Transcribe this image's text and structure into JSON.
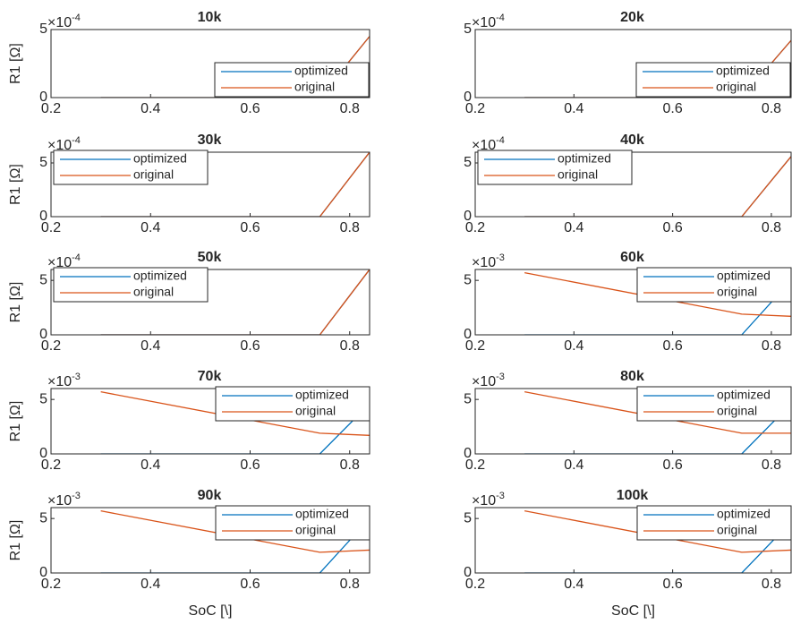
{
  "chart_data": [
    {
      "type": "line",
      "title": "10k",
      "ylabel": "R1 [Ω]",
      "x": [
        0.3,
        0.74,
        0.84
      ],
      "xlim": [
        0.2,
        0.84
      ],
      "xticks": [
        0.2,
        0.4,
        0.6,
        0.8
      ],
      "ylim": [
        0,
        0.0005
      ],
      "yticks": [
        0,
        {
          "value": 0.0005,
          "label": "5"
        }
      ],
      "y_multiplier": {
        "base": "×10",
        "exponent": "-4"
      },
      "legend": "southeast",
      "series": [
        {
          "name": "optimized",
          "color": "#0072BD",
          "values": [
            0,
            0,
            0.00045
          ]
        },
        {
          "name": "original",
          "color": "#D95319",
          "values": [
            0,
            0,
            0.00045
          ]
        }
      ]
    },
    {
      "type": "line",
      "title": "20k",
      "x": [
        0.3,
        0.74,
        0.84
      ],
      "xlim": [
        0.2,
        0.84
      ],
      "xticks": [
        0.2,
        0.4,
        0.6,
        0.8
      ],
      "ylim": [
        0,
        0.0005
      ],
      "yticks": [
        0,
        {
          "value": 0.0005,
          "label": "5"
        }
      ],
      "y_multiplier": {
        "base": "×10",
        "exponent": "-4"
      },
      "legend": "southeast",
      "series": [
        {
          "name": "optimized",
          "color": "#0072BD",
          "values": [
            0,
            0,
            0.00042
          ]
        },
        {
          "name": "original",
          "color": "#D95319",
          "values": [
            0,
            0,
            0.00042
          ]
        }
      ]
    },
    {
      "type": "line",
      "title": "30k",
      "ylabel": "R1 [Ω]",
      "x": [
        0.3,
        0.74,
        0.84
      ],
      "xlim": [
        0.2,
        0.84
      ],
      "xticks": [
        0.2,
        0.4,
        0.6,
        0.8
      ],
      "ylim": [
        0,
        0.0006
      ],
      "yticks": [
        0,
        {
          "value": 0.0005,
          "label": "5"
        }
      ],
      "y_multiplier": {
        "base": "×10",
        "exponent": "-4"
      },
      "legend": "northwest",
      "series": [
        {
          "name": "optimized",
          "color": "#0072BD",
          "values": [
            0,
            0,
            0.0006
          ]
        },
        {
          "name": "original",
          "color": "#D95319",
          "values": [
            0,
            0,
            0.0006
          ]
        }
      ]
    },
    {
      "type": "line",
      "title": "40k",
      "x": [
        0.3,
        0.74,
        0.84
      ],
      "xlim": [
        0.2,
        0.84
      ],
      "xticks": [
        0.2,
        0.4,
        0.6,
        0.8
      ],
      "ylim": [
        0,
        0.0006
      ],
      "yticks": [
        0,
        {
          "value": 0.0005,
          "label": "5"
        }
      ],
      "y_multiplier": {
        "base": "×10",
        "exponent": "-4"
      },
      "legend": "northwest",
      "series": [
        {
          "name": "optimized",
          "color": "#0072BD",
          "values": [
            0,
            0,
            0.00056
          ]
        },
        {
          "name": "original",
          "color": "#D95319",
          "values": [
            0,
            0,
            0.00056
          ]
        }
      ]
    },
    {
      "type": "line",
      "title": "50k",
      "ylabel": "R1 [Ω]",
      "x": [
        0.3,
        0.74,
        0.84
      ],
      "xlim": [
        0.2,
        0.84
      ],
      "xticks": [
        0.2,
        0.4,
        0.6,
        0.8
      ],
      "ylim": [
        0,
        0.0006
      ],
      "yticks": [
        0,
        {
          "value": 0.0005,
          "label": "5"
        }
      ],
      "y_multiplier": {
        "base": "×10",
        "exponent": "-4"
      },
      "legend": "northwest",
      "series": [
        {
          "name": "optimized",
          "color": "#0072BD",
          "values": [
            0,
            0,
            0.0006
          ]
        },
        {
          "name": "original",
          "color": "#D95319",
          "values": [
            0,
            0,
            0.0006
          ]
        }
      ]
    },
    {
      "type": "line",
      "title": "60k",
      "x": [
        0.3,
        0.74,
        0.84
      ],
      "xlim": [
        0.2,
        0.84
      ],
      "xticks": [
        0.2,
        0.4,
        0.6,
        0.8
      ],
      "ylim": [
        0,
        0.006
      ],
      "yticks": [
        0,
        {
          "value": 0.005,
          "label": "5"
        }
      ],
      "y_multiplier": {
        "base": "×10",
        "exponent": "-3"
      },
      "legend": "northeast",
      "series": [
        {
          "name": "optimized",
          "color": "#0072BD",
          "values": [
            0,
            0,
            0.005
          ]
        },
        {
          "name": "original",
          "color": "#D95319",
          "values": [
            0.0057,
            0.0019,
            0.0017
          ]
        }
      ]
    },
    {
      "type": "line",
      "title": "70k",
      "ylabel": "R1 [Ω]",
      "x": [
        0.3,
        0.74,
        0.84
      ],
      "xlim": [
        0.2,
        0.84
      ],
      "xticks": [
        0.2,
        0.4,
        0.6,
        0.8
      ],
      "ylim": [
        0,
        0.006
      ],
      "yticks": [
        0,
        {
          "value": 0.005,
          "label": "5"
        }
      ],
      "y_multiplier": {
        "base": "×10",
        "exponent": "-3"
      },
      "legend": "northeast",
      "series": [
        {
          "name": "optimized",
          "color": "#0072BD",
          "values": [
            0,
            0,
            0.0046
          ]
        },
        {
          "name": "original",
          "color": "#D95319",
          "values": [
            0.0057,
            0.0019,
            0.0017
          ]
        }
      ]
    },
    {
      "type": "line",
      "title": "80k",
      "x": [
        0.3,
        0.74,
        0.84
      ],
      "xlim": [
        0.2,
        0.84
      ],
      "xticks": [
        0.2,
        0.4,
        0.6,
        0.8
      ],
      "ylim": [
        0,
        0.006
      ],
      "yticks": [
        0,
        {
          "value": 0.005,
          "label": "5"
        }
      ],
      "y_multiplier": {
        "base": "×10",
        "exponent": "-3"
      },
      "legend": "northeast",
      "series": [
        {
          "name": "optimized",
          "color": "#0072BD",
          "values": [
            0,
            0,
            0.0046
          ]
        },
        {
          "name": "original",
          "color": "#D95319",
          "values": [
            0.0057,
            0.0019,
            0.0019
          ]
        }
      ]
    },
    {
      "type": "line",
      "title": "90k",
      "ylabel": "R1 [Ω]",
      "xlabel": "SoC [\\]",
      "x": [
        0.3,
        0.74,
        0.84
      ],
      "xlim": [
        0.2,
        0.84
      ],
      "xticks": [
        0.2,
        0.4,
        0.6,
        0.8
      ],
      "ylim": [
        0,
        0.006
      ],
      "yticks": [
        0,
        {
          "value": 0.005,
          "label": "5"
        }
      ],
      "y_multiplier": {
        "base": "×10",
        "exponent": "-3"
      },
      "legend": "northeast",
      "series": [
        {
          "name": "optimized",
          "color": "#0072BD",
          "values": [
            0,
            0,
            0.005
          ]
        },
        {
          "name": "original",
          "color": "#D95319",
          "values": [
            0.0057,
            0.0019,
            0.0021
          ]
        }
      ]
    },
    {
      "type": "line",
      "title": "100k",
      "xlabel": "SoC [\\]",
      "x": [
        0.3,
        0.74,
        0.84
      ],
      "xlim": [
        0.2,
        0.84
      ],
      "xticks": [
        0.2,
        0.4,
        0.6,
        0.8
      ],
      "ylim": [
        0,
        0.006
      ],
      "yticks": [
        0,
        {
          "value": 0.005,
          "label": "5"
        }
      ],
      "y_multiplier": {
        "base": "×10",
        "exponent": "-3"
      },
      "legend": "northeast",
      "series": [
        {
          "name": "optimized",
          "color": "#0072BD",
          "values": [
            0,
            0,
            0.0047
          ]
        },
        {
          "name": "original",
          "color": "#D95319",
          "values": [
            0.0057,
            0.0019,
            0.0021
          ]
        }
      ]
    }
  ]
}
